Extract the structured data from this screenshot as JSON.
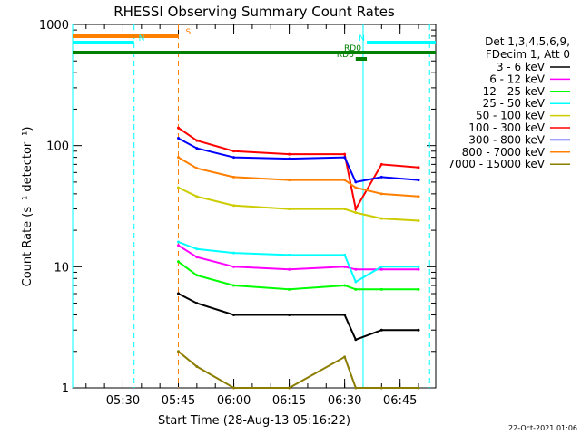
{
  "chart_data": {
    "type": "line",
    "title": "RHESSI Observing Summary Count Rates",
    "xlabel": "Start Time (28-Aug-13 05:16:22)",
    "ylabel": "Count Rate (s⁻¹ detector⁻¹)",
    "yscale": "log",
    "ylim": [
      1,
      1000
    ],
    "xlim": [
      "05:16:22",
      "06:54:40"
    ],
    "x_ticks": [
      "05:30",
      "05:45",
      "06:00",
      "06:15",
      "06:30",
      "06:45"
    ],
    "y_ticks": [
      "1",
      "10",
      "100",
      "1000"
    ],
    "legend": {
      "position": "right",
      "header": [
        "Det 1,3,4,5,6,9,",
        "FDecim 1, Att 0"
      ]
    },
    "series": [
      {
        "name": "3 - 6 keV",
        "color": "#000000",
        "x": [
          "05:45",
          "05:50",
          "06:00",
          "06:15",
          "06:30",
          "06:33",
          "06:40",
          "06:50"
        ],
        "y": [
          6.0,
          5.0,
          4.0,
          4.0,
          4.0,
          2.5,
          3.0,
          3.0
        ]
      },
      {
        "name": "6 - 12 keV",
        "color": "#ff00ff",
        "x": [
          "05:45",
          "05:50",
          "06:00",
          "06:15",
          "06:30",
          "06:33",
          "06:40",
          "06:50"
        ],
        "y": [
          15,
          12,
          10,
          9.5,
          10,
          9.5,
          9.5,
          9.5
        ]
      },
      {
        "name": "12 - 25 keV",
        "color": "#00ff00",
        "x": [
          "05:45",
          "05:50",
          "06:00",
          "06:15",
          "06:30",
          "06:33",
          "06:40",
          "06:50"
        ],
        "y": [
          11,
          8.5,
          7.0,
          6.5,
          7.0,
          6.5,
          6.5,
          6.5
        ]
      },
      {
        "name": "25 - 50 keV",
        "color": "#00ffff",
        "x": [
          "05:45",
          "05:50",
          "06:00",
          "06:15",
          "06:30",
          "06:33",
          "06:40",
          "06:50"
        ],
        "y": [
          16,
          14,
          13,
          12.5,
          12.5,
          7.5,
          10,
          10
        ]
      },
      {
        "name": "50 - 100 keV",
        "color": "#cccc00",
        "x": [
          "05:45",
          "05:50",
          "06:00",
          "06:15",
          "06:30",
          "06:33",
          "06:40",
          "06:50"
        ],
        "y": [
          45,
          38,
          32,
          30,
          30,
          28,
          25,
          24
        ]
      },
      {
        "name": "100 - 300 keV",
        "color": "#ff0000",
        "x": [
          "05:45",
          "05:50",
          "06:00",
          "06:15",
          "06:30",
          "06:33",
          "06:40",
          "06:50"
        ],
        "y": [
          140,
          110,
          90,
          85,
          85,
          30,
          70,
          66
        ]
      },
      {
        "name": "300 - 800 keV",
        "color": "#0000ff",
        "x": [
          "05:45",
          "05:50",
          "06:00",
          "06:15",
          "06:30",
          "06:33",
          "06:40",
          "06:50"
        ],
        "y": [
          115,
          95,
          80,
          78,
          80,
          50,
          55,
          52
        ]
      },
      {
        "name": "800 - 7000 keV",
        "color": "#ff7f00",
        "x": [
          "05:45",
          "05:50",
          "06:00",
          "06:15",
          "06:30",
          "06:33",
          "06:40",
          "06:50"
        ],
        "y": [
          80,
          65,
          55,
          52,
          52,
          45,
          40,
          38
        ]
      },
      {
        "name": "7000 - 15000 keV",
        "color": "#8b7d00",
        "x": [
          "05:45",
          "05:50",
          "06:00",
          "06:15",
          "06:30",
          "06:33",
          "06:40",
          "06:50"
        ],
        "y": [
          2.0,
          1.5,
          1.0,
          1.0,
          1.8,
          1.0,
          1.0,
          1.0
        ]
      }
    ],
    "flag_bars": [
      {
        "label": "S",
        "color": "#ff7f00",
        "start": "05:16:22",
        "end": "05:45:00"
      },
      {
        "label": "N",
        "color": "#00ffff",
        "start": "05:16:22",
        "end": "05:33:00"
      },
      {
        "label": "N",
        "color": "#00ffff",
        "start": "06:36:00",
        "end": "06:54:40"
      },
      {
        "label": "",
        "color": "#008000",
        "start": "05:16:22",
        "end": "06:54:40"
      },
      {
        "label": "RD0",
        "color": "#008000",
        "start": "06:35:00",
        "end": "06:36:00"
      },
      {
        "label": "RD6",
        "color": "#008000",
        "start": "06:33:00",
        "end": "06:36:00"
      }
    ],
    "vlines": [
      {
        "x": "05:16:22",
        "color": "#00ffff",
        "style": "solid"
      },
      {
        "x": "05:33:00",
        "color": "#00ffff",
        "style": "dashed"
      },
      {
        "x": "05:45:00",
        "color": "#ff7f00",
        "style": "dashed"
      },
      {
        "x": "06:35:00",
        "color": "#00ffff",
        "style": "solid"
      },
      {
        "x": "06:53:00",
        "color": "#00ffff",
        "style": "dashed"
      }
    ]
  },
  "footer": {
    "timestamp": "22-Oct-2021 01:06"
  }
}
